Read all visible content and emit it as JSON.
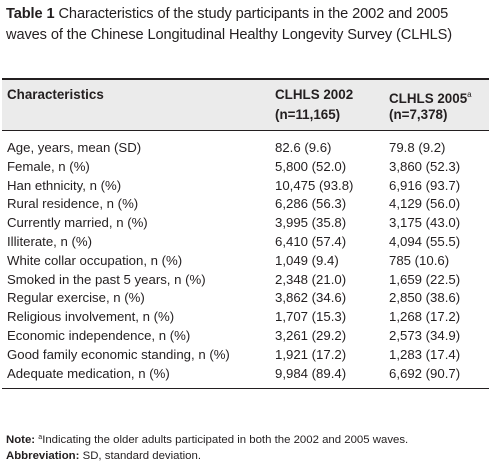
{
  "caption": {
    "label": "Table 1",
    "text": "Characteristics of the study participants in the 2002 and 2005 waves of the Chinese Longitudinal Healthy Longevity Survey (CLHLS)"
  },
  "header": {
    "characteristics": "Characteristics",
    "col2002": "CLHLS 2002",
    "col2002_n": "(n=11,165)",
    "col2005": "CLHLS 2005",
    "col2005_sup": "a",
    "col2005_n": "(n=7,378)"
  },
  "rows": [
    {
      "label": "Age, years, mean (SD)",
      "v2002": "82.6 (9.6)",
      "v2005": "79.8 (9.2)"
    },
    {
      "label": "Female, n (%)",
      "v2002": "5,800 (52.0)",
      "v2005": "3,860 (52.3)"
    },
    {
      "label": "Han ethnicity, n (%)",
      "v2002": "10,475 (93.8)",
      "v2005": "6,916 (93.7)"
    },
    {
      "label": "Rural residence, n (%)",
      "v2002": "6,286 (56.3)",
      "v2005": "4,129 (56.0)"
    },
    {
      "label": "Currently married, n (%)",
      "v2002": "3,995 (35.8)",
      "v2005": "3,175 (43.0)"
    },
    {
      "label": "Illiterate, n (%)",
      "v2002": "6,410 (57.4)",
      "v2005": "4,094 (55.5)"
    },
    {
      "label": "White collar occupation, n (%)",
      "v2002": "1,049 (9.4)",
      "v2005": "785 (10.6)"
    },
    {
      "label": "Smoked in the past 5 years, n (%)",
      "v2002": "2,348 (21.0)",
      "v2005": "1,659 (22.5)"
    },
    {
      "label": "Regular exercise, n (%)",
      "v2002": "3,862 (34.6)",
      "v2005": "2,850 (38.6)"
    },
    {
      "label": "Religious involvement, n (%)",
      "v2002": "1,707 (15.3)",
      "v2005": "1,268 (17.2)"
    },
    {
      "label": "Economic independence, n (%)",
      "v2002": "3,261 (29.2)",
      "v2005": "2,573 (34.9)"
    },
    {
      "label": "Good family economic standing, n (%)",
      "v2002": "1,921 (17.2)",
      "v2005": "1,283 (17.4)"
    },
    {
      "label": "Adequate medication, n (%)",
      "v2002": "9,984 (89.4)",
      "v2005": "6,692 (90.7)"
    }
  ],
  "notes": {
    "note_label": "Note:",
    "note_sup": "a",
    "note_text": "Indicating the older adults participated in both the 2002 and 2005 waves.",
    "abbr_label": "Abbreviation:",
    "abbr_text": "SD, standard deviation."
  }
}
